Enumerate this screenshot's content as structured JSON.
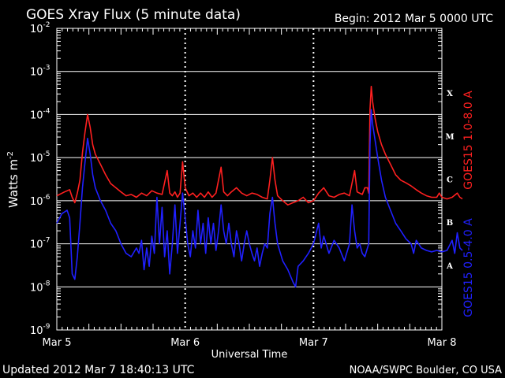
{
  "title": "GOES Xray Flux (5 minute data)",
  "begin": "Begin:  2012 Mar 5 0000 UTC",
  "updated": "Updated 2012 Mar  7 18:40:13 UTC",
  "credit": "NOAA/SWPC Boulder, CO USA",
  "colors": {
    "background": "#000000",
    "long": "#ff2020",
    "short": "#2020ff",
    "grid": "#ffffff"
  },
  "chart_data": {
    "type": "line",
    "title": "GOES Xray Flux (5 minute data)",
    "xlabel": "Universal Time",
    "ylabel": "Watts m",
    "ylabel_sup": "-2",
    "yscale": "log",
    "ylim": [
      1e-09,
      0.01
    ],
    "xlim_days": [
      0,
      3
    ],
    "x_ticks": [
      "Mar 5",
      "Mar 6",
      "Mar 7",
      "Mar 8"
    ],
    "y_ticks": [
      {
        "base": "10",
        "exp": "-9"
      },
      {
        "base": "10",
        "exp": "-8"
      },
      {
        "base": "10",
        "exp": "-7"
      },
      {
        "base": "10",
        "exp": "-6"
      },
      {
        "base": "10",
        "exp": "-5"
      },
      {
        "base": "10",
        "exp": "-4"
      },
      {
        "base": "10",
        "exp": "-3"
      },
      {
        "base": "10",
        "exp": "-2"
      }
    ],
    "flare_classes": [
      {
        "label": "X",
        "flux": 0.0001
      },
      {
        "label": "M",
        "flux": 1e-05
      },
      {
        "label": "C",
        "flux": 1e-06
      },
      {
        "label": "B",
        "flux": 1e-07
      },
      {
        "label": "A",
        "flux": 1e-08
      }
    ],
    "grid": "horizontal at each decade, dotted vertical at day boundaries",
    "series": [
      {
        "name": "GOES15 1.0-8.0 A",
        "color": "#ff2020",
        "points": [
          [
            0.0,
            1.3e-06
          ],
          [
            0.06,
            1.6e-06
          ],
          [
            0.1,
            1.8e-06
          ],
          [
            0.12,
            1.2e-06
          ],
          [
            0.14,
            9e-07
          ],
          [
            0.16,
            1.5e-06
          ],
          [
            0.18,
            3e-06
          ],
          [
            0.2,
            1.3e-05
          ],
          [
            0.22,
            4e-05
          ],
          [
            0.24,
            0.0001
          ],
          [
            0.26,
            5e-05
          ],
          [
            0.28,
            2e-05
          ],
          [
            0.3,
            1.2e-05
          ],
          [
            0.34,
            7e-06
          ],
          [
            0.38,
            4e-06
          ],
          [
            0.42,
            2.5e-06
          ],
          [
            0.46,
            2e-06
          ],
          [
            0.5,
            1.6e-06
          ],
          [
            0.54,
            1.3e-06
          ],
          [
            0.58,
            1.4e-06
          ],
          [
            0.62,
            1.2e-06
          ],
          [
            0.66,
            1.5e-06
          ],
          [
            0.7,
            1.3e-06
          ],
          [
            0.74,
            1.7e-06
          ],
          [
            0.78,
            1.5e-06
          ],
          [
            0.82,
            1.4e-06
          ],
          [
            0.86,
            5e-06
          ],
          [
            0.88,
            1.5e-06
          ],
          [
            0.9,
            1.3e-06
          ],
          [
            0.92,
            1.6e-06
          ],
          [
            0.94,
            1.2e-06
          ],
          [
            0.96,
            1.5e-06
          ],
          [
            0.98,
            8e-06
          ],
          [
            1.0,
            2e-06
          ],
          [
            1.03,
            1.3e-06
          ],
          [
            1.06,
            1.5e-06
          ],
          [
            1.09,
            1.2e-06
          ],
          [
            1.12,
            1.5e-06
          ],
          [
            1.15,
            1.2e-06
          ],
          [
            1.18,
            1.6e-06
          ],
          [
            1.21,
            1.2e-06
          ],
          [
            1.24,
            1.5e-06
          ],
          [
            1.28,
            6e-06
          ],
          [
            1.3,
            1.6e-06
          ],
          [
            1.33,
            1.3e-06
          ],
          [
            1.36,
            1.6e-06
          ],
          [
            1.4,
            2e-06
          ],
          [
            1.44,
            1.5e-06
          ],
          [
            1.48,
            1.3e-06
          ],
          [
            1.52,
            1.5e-06
          ],
          [
            1.56,
            1.4e-06
          ],
          [
            1.6,
            1.2e-06
          ],
          [
            1.64,
            1.1e-06
          ],
          [
            1.66,
            3e-06
          ],
          [
            1.68,
            1e-05
          ],
          [
            1.7,
            3e-06
          ],
          [
            1.72,
            1.3e-06
          ],
          [
            1.76,
            1e-06
          ],
          [
            1.8,
            8e-07
          ],
          [
            1.84,
            9e-07
          ],
          [
            1.88,
            1e-06
          ],
          [
            1.92,
            1.2e-06
          ],
          [
            1.96,
            9e-07
          ],
          [
            2.0,
            1e-06
          ],
          [
            2.04,
            1.5e-06
          ],
          [
            2.08,
            2e-06
          ],
          [
            2.12,
            1.3e-06
          ],
          [
            2.16,
            1.2e-06
          ],
          [
            2.2,
            1.4e-06
          ],
          [
            2.24,
            1.5e-06
          ],
          [
            2.28,
            1.3e-06
          ],
          [
            2.32,
            5e-06
          ],
          [
            2.34,
            1.6e-06
          ],
          [
            2.38,
            1.4e-06
          ],
          [
            2.4,
            2e-06
          ],
          [
            2.42,
            2e-06
          ],
          [
            2.43,
            1.5e-06
          ],
          [
            2.44,
            0.00013
          ],
          [
            2.45,
            0.00045
          ],
          [
            2.46,
            0.0002
          ],
          [
            2.48,
            8e-05
          ],
          [
            2.5,
            4e-05
          ],
          [
            2.53,
            2e-05
          ],
          [
            2.56,
            1.2e-05
          ],
          [
            2.6,
            7e-06
          ],
          [
            2.64,
            4e-06
          ],
          [
            2.68,
            3e-06
          ],
          [
            2.72,
            2.6e-06
          ],
          [
            2.76,
            2.2e-06
          ],
          [
            2.8,
            1.8e-06
          ],
          [
            2.84,
            1.5e-06
          ],
          [
            2.88,
            1.3e-06
          ],
          [
            2.92,
            1.2e-06
          ],
          [
            2.96,
            1.2e-06
          ],
          [
            2.98,
            1.5e-06
          ],
          [
            3.0,
            1.2e-06
          ],
          [
            3.04,
            1.1e-06
          ],
          [
            3.08,
            1.2e-06
          ],
          [
            3.12,
            1.5e-06
          ],
          [
            3.14,
            1.2e-06
          ],
          [
            3.16,
            1.1e-06
          ]
        ]
      },
      {
        "name": "GOES15 0.5-4.0 A",
        "color": "#2020ff",
        "points": [
          [
            0.0,
            3e-07
          ],
          [
            0.04,
            5e-07
          ],
          [
            0.08,
            6e-07
          ],
          [
            0.1,
            4e-07
          ],
          [
            0.12,
            2e-08
          ],
          [
            0.14,
            1.5e-08
          ],
          [
            0.16,
            5e-08
          ],
          [
            0.18,
            3e-07
          ],
          [
            0.2,
            2e-06
          ],
          [
            0.22,
            8e-06
          ],
          [
            0.24,
            2.8e-05
          ],
          [
            0.26,
            1.2e-05
          ],
          [
            0.28,
            4e-06
          ],
          [
            0.3,
            2e-06
          ],
          [
            0.34,
            1e-06
          ],
          [
            0.38,
            6e-07
          ],
          [
            0.42,
            3e-07
          ],
          [
            0.46,
            2e-07
          ],
          [
            0.5,
            1e-07
          ],
          [
            0.54,
            6e-08
          ],
          [
            0.58,
            5e-08
          ],
          [
            0.62,
            8e-08
          ],
          [
            0.64,
            6e-08
          ],
          [
            0.66,
            1.2e-07
          ],
          [
            0.68,
            2.5e-08
          ],
          [
            0.7,
            8e-08
          ],
          [
            0.72,
            3e-08
          ],
          [
            0.74,
            1.5e-07
          ],
          [
            0.76,
            6e-08
          ],
          [
            0.78,
            1.2e-06
          ],
          [
            0.8,
            1e-07
          ],
          [
            0.82,
            7e-07
          ],
          [
            0.84,
            5e-08
          ],
          [
            0.86,
            2e-07
          ],
          [
            0.88,
            2e-08
          ],
          [
            0.9,
            1e-07
          ],
          [
            0.92,
            8e-07
          ],
          [
            0.94,
            6e-08
          ],
          [
            0.96,
            3e-07
          ],
          [
            0.98,
            1.5e-06
          ],
          [
            1.0,
            4e-07
          ],
          [
            1.02,
            1e-07
          ],
          [
            1.04,
            5e-08
          ],
          [
            1.06,
            2e-07
          ],
          [
            1.08,
            8e-08
          ],
          [
            1.1,
            6e-07
          ],
          [
            1.12,
            1e-07
          ],
          [
            1.14,
            3e-07
          ],
          [
            1.16,
            6e-08
          ],
          [
            1.18,
            4e-07
          ],
          [
            1.2,
            1e-07
          ],
          [
            1.22,
            3e-07
          ],
          [
            1.24,
            7e-08
          ],
          [
            1.26,
            2e-07
          ],
          [
            1.28,
            8e-07
          ],
          [
            1.3,
            2e-07
          ],
          [
            1.32,
            1e-07
          ],
          [
            1.34,
            3e-07
          ],
          [
            1.36,
            1e-07
          ],
          [
            1.38,
            5e-08
          ],
          [
            1.4,
            2e-07
          ],
          [
            1.42,
            1e-07
          ],
          [
            1.44,
            4e-08
          ],
          [
            1.46,
            1e-07
          ],
          [
            1.48,
            2e-07
          ],
          [
            1.5,
            1e-07
          ],
          [
            1.52,
            6e-08
          ],
          [
            1.54,
            4e-08
          ],
          [
            1.56,
            8e-08
          ],
          [
            1.58,
            3e-08
          ],
          [
            1.6,
            6e-08
          ],
          [
            1.62,
            1e-07
          ],
          [
            1.64,
            8e-08
          ],
          [
            1.66,
            5e-07
          ],
          [
            1.68,
            1.2e-06
          ],
          [
            1.7,
            3e-07
          ],
          [
            1.72,
            1e-07
          ],
          [
            1.76,
            4e-08
          ],
          [
            1.8,
            2.5e-08
          ],
          [
            1.84,
            1.3e-08
          ],
          [
            1.86,
            1e-08
          ],
          [
            1.88,
            3e-08
          ],
          [
            1.92,
            4e-08
          ],
          [
            1.96,
            6e-08
          ],
          [
            2.0,
            1e-07
          ],
          [
            2.04,
            3e-07
          ],
          [
            2.06,
            8e-08
          ],
          [
            2.08,
            1.5e-07
          ],
          [
            2.12,
            6e-08
          ],
          [
            2.16,
            1.2e-07
          ],
          [
            2.2,
            8e-08
          ],
          [
            2.24,
            4e-08
          ],
          [
            2.28,
            1e-07
          ],
          [
            2.3,
            8e-07
          ],
          [
            2.32,
            2e-07
          ],
          [
            2.34,
            8e-08
          ],
          [
            2.36,
            1e-07
          ],
          [
            2.38,
            6e-08
          ],
          [
            2.4,
            5e-08
          ],
          [
            2.42,
            8e-08
          ],
          [
            2.43,
            1e-07
          ],
          [
            2.44,
            2e-05
          ],
          [
            2.45,
            0.00013
          ],
          [
            2.46,
            6e-05
          ],
          [
            2.48,
            2.5e-05
          ],
          [
            2.5,
            1e-05
          ],
          [
            2.53,
            3e-06
          ],
          [
            2.56,
            1.2e-06
          ],
          [
            2.6,
            6e-07
          ],
          [
            2.64,
            3e-07
          ],
          [
            2.68,
            2e-07
          ],
          [
            2.72,
            1.3e-07
          ],
          [
            2.76,
            1e-07
          ],
          [
            2.78,
            6e-08
          ],
          [
            2.8,
            1.2e-07
          ],
          [
            2.84,
            8e-08
          ],
          [
            2.88,
            7e-08
          ],
          [
            2.92,
            6.5e-08
          ],
          [
            2.96,
            7e-08
          ],
          [
            3.0,
            6.5e-08
          ],
          [
            3.04,
            7e-08
          ],
          [
            3.08,
            1.2e-07
          ],
          [
            3.1,
            6e-08
          ],
          [
            3.12,
            1.8e-07
          ],
          [
            3.14,
            8e-08
          ],
          [
            3.16,
            7e-08
          ]
        ]
      }
    ]
  }
}
